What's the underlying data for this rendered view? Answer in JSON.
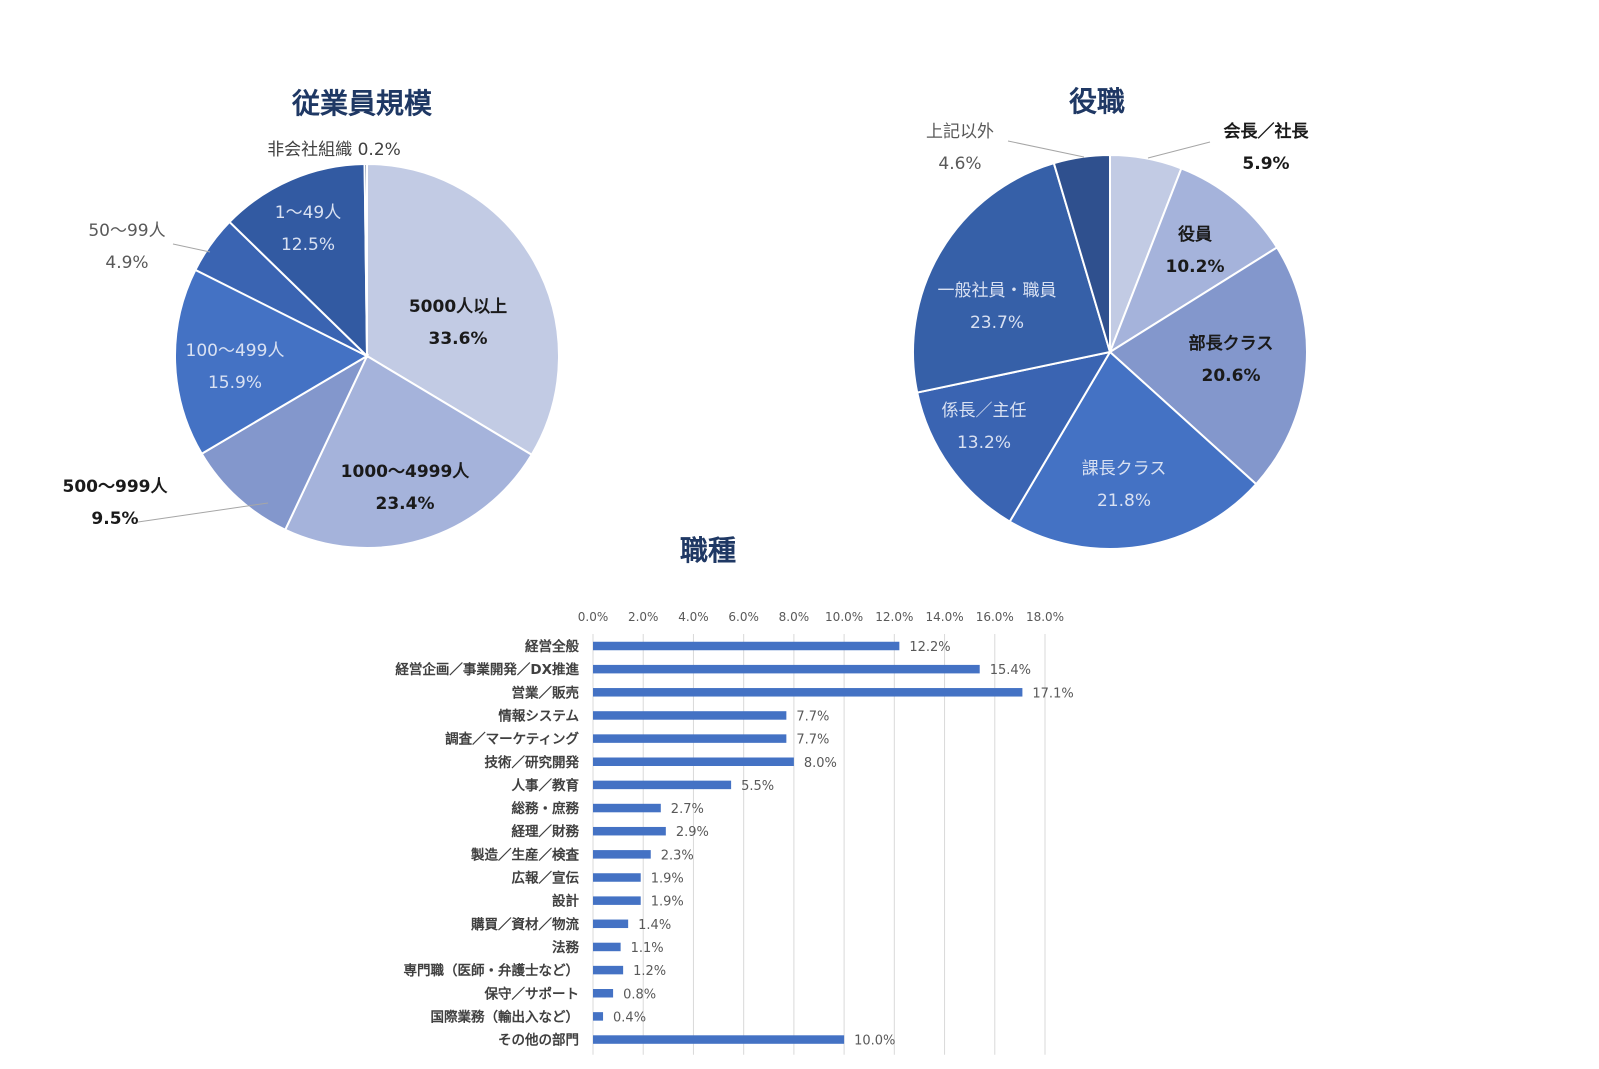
{
  "chart_data": [
    {
      "type": "pie",
      "title": "従業員規模",
      "slices": [
        {
          "label": "5000人以上",
          "value": 33.6,
          "display": "33.6%",
          "color": "#c2cbe4",
          "text_color": "#1a1a1a",
          "bold": true
        },
        {
          "label": "1000〜4999人",
          "value": 23.4,
          "display": "23.4%",
          "color": "#a5b3db",
          "text_color": "#1a1a1a",
          "bold": true
        },
        {
          "label": "500〜999人",
          "value": 9.5,
          "display": "9.5%",
          "color": "#8397cc",
          "text_color": "#1a1a1a",
          "bold": true
        },
        {
          "label": "100〜499人",
          "value": 15.9,
          "display": "15.9%",
          "color": "#4472c4",
          "text_color": "#d9e1f2",
          "bold": false
        },
        {
          "label": "50〜99人",
          "value": 4.9,
          "display": "4.9%",
          "color": "#3a64b2",
          "text_color": "#595959",
          "bold": false
        },
        {
          "label": "1〜49人",
          "value": 12.5,
          "display": "12.5%",
          "color": "#325aa2",
          "text_color": "#d9e1f2",
          "bold": false
        },
        {
          "label": "非会社組織",
          "value": 0.2,
          "display": "0.2%",
          "color": "#1f3864",
          "text_color": "#404040",
          "bold": false
        }
      ]
    },
    {
      "type": "pie",
      "title": "役職",
      "slices": [
        {
          "label": "会長／社長",
          "value": 5.9,
          "display": "5.9%",
          "color": "#c2cbe4",
          "text_color": "#1a1a1a",
          "bold": true
        },
        {
          "label": "役員",
          "value": 10.2,
          "display": "10.2%",
          "color": "#a5b3db",
          "text_color": "#1a1a1a",
          "bold": true
        },
        {
          "label": "部長クラス",
          "value": 20.6,
          "display": "20.6%",
          "color": "#8397cc",
          "text_color": "#1a1a1a",
          "bold": true
        },
        {
          "label": "課長クラス",
          "value": 21.8,
          "display": "21.8%",
          "color": "#4472c4",
          "text_color": "#d9e1f2",
          "bold": false
        },
        {
          "label": "係長／主任",
          "value": 13.2,
          "display": "13.2%",
          "color": "#3a64b2",
          "text_color": "#d9e1f2",
          "bold": false
        },
        {
          "label": "一般社員・職員",
          "value": 23.7,
          "display": "23.7%",
          "color": "#3660a8",
          "text_color": "#d9e1f2",
          "bold": false
        },
        {
          "label": "上記以外",
          "value": 4.6,
          "display": "4.6%",
          "color": "#2f508e",
          "text_color": "#595959",
          "bold": false
        }
      ]
    },
    {
      "type": "bar",
      "orientation": "horizontal",
      "title": "職種",
      "bar_color": "#4472c4",
      "xlim": [
        0,
        18
      ],
      "x_ticks": [
        "0.0%",
        "2.0%",
        "4.0%",
        "6.0%",
        "8.0%",
        "10.0%",
        "12.0%",
        "14.0%",
        "16.0%",
        "18.0%"
      ],
      "grid": true,
      "categories": [
        "経営全般",
        "経営企画／事業開発／DX推進",
        "営業／販売",
        "情報システム",
        "調査／マーケティング",
        "技術／研究開発",
        "人事／教育",
        "総務・庶務",
        "経理／財務",
        "製造／生産／検査",
        "広報／宣伝",
        "設計",
        "購買／資材／物流",
        "法務",
        "専門職（医師・弁護士など）",
        "保守／サポート",
        "国際業務（輸出入など）",
        "その他の部門"
      ],
      "values": [
        12.2,
        15.4,
        17.1,
        7.7,
        7.7,
        8.0,
        5.5,
        2.7,
        2.9,
        2.3,
        1.9,
        1.9,
        1.4,
        1.1,
        1.2,
        0.8,
        0.4,
        10.0
      ],
      "data_labels": [
        "12.2%",
        "15.4%",
        "17.1%",
        "7.7%",
        "7.7%",
        "8.0%",
        "5.5%",
        "2.7%",
        "2.9%",
        "2.3%",
        "1.9%",
        "1.9%",
        "1.4%",
        "1.1%",
        "1.2%",
        "0.8%",
        "0.4%",
        "10.0%"
      ]
    }
  ]
}
